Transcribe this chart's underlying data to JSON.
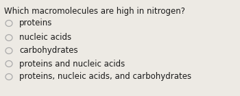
{
  "question": "Which macromolecules are high in nitrogen?",
  "options": [
    "proteins",
    "nucleic acids",
    "carbohydrates",
    "proteins and nucleic acids",
    "proteins, nucleic acids, and carbohydrates"
  ],
  "bg_color": "#edeae4",
  "question_color": "#1a1a1a",
  "option_color": "#1a1a1a",
  "question_fontsize": 8.5,
  "option_fontsize": 8.5,
  "circle_edge_color": "#aaaaaa",
  "circle_face_color": "#edeae4"
}
